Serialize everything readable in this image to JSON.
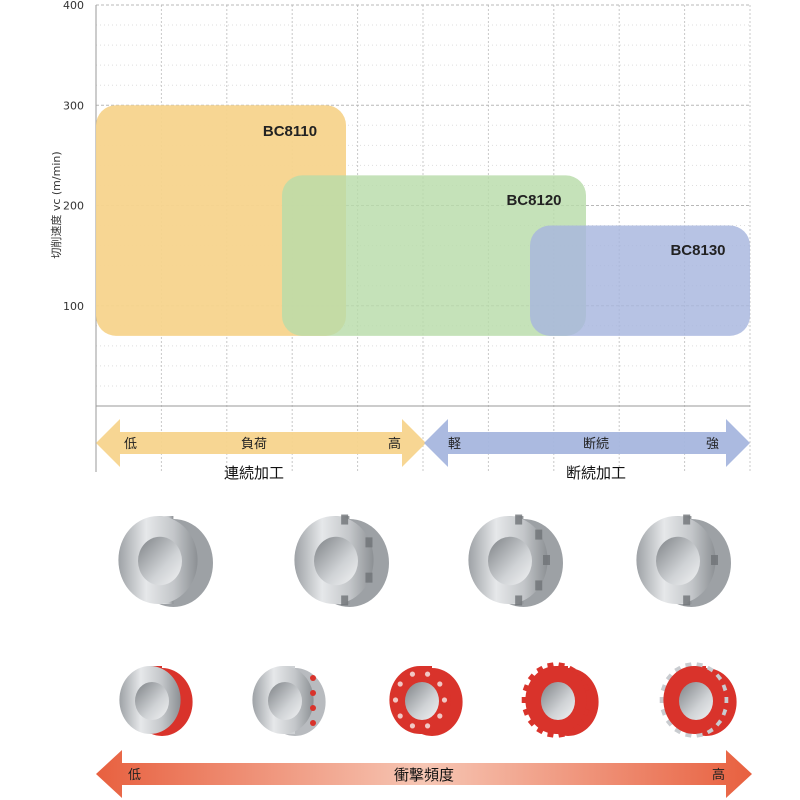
{
  "chart_data": {
    "type": "range",
    "ylabel": "切削速度 vc (m/min)",
    "ylim": [
      0,
      400
    ],
    "yticks": [
      100,
      200,
      300,
      400
    ],
    "grid": true,
    "series": [
      {
        "name": "BC8110",
        "y_range": [
          70,
          300
        ],
        "x_span": [
          "連続加工 低",
          "断続加工 軽"
        ],
        "color": "#f7d48d"
      },
      {
        "name": "BC8120",
        "y_range": [
          70,
          230
        ],
        "x_span": [
          "連続加工 負荷",
          "断続加工 断続"
        ],
        "color": "#b8dcaa"
      },
      {
        "name": "BC8130",
        "y_range": [
          70,
          180
        ],
        "x_span": [
          "断続加工 断続",
          "断続加工 強"
        ],
        "color": "#a7b6de"
      }
    ]
  },
  "axis_groups": {
    "left": {
      "low": "低",
      "mid": "負荷",
      "high": "高",
      "title": "連続加工",
      "color": "#f7d48d"
    },
    "right": {
      "low": "軽",
      "mid": "断続",
      "high": "強",
      "title": "断続加工",
      "color": "#a7b6de"
    }
  },
  "workpieces": {
    "top_row": [
      "plain-ring",
      "slotted-ring",
      "notched-ring",
      "cut-ring"
    ],
    "bottom_row": [
      "red-band-ring",
      "red-dotted-ring",
      "red-holed-ring",
      "red-gear",
      "red-fine-gear"
    ],
    "accent_color": "#d9332b"
  },
  "impact": {
    "low": "低",
    "title": "衝撃頻度",
    "high": "高",
    "color": "#e8603f"
  }
}
